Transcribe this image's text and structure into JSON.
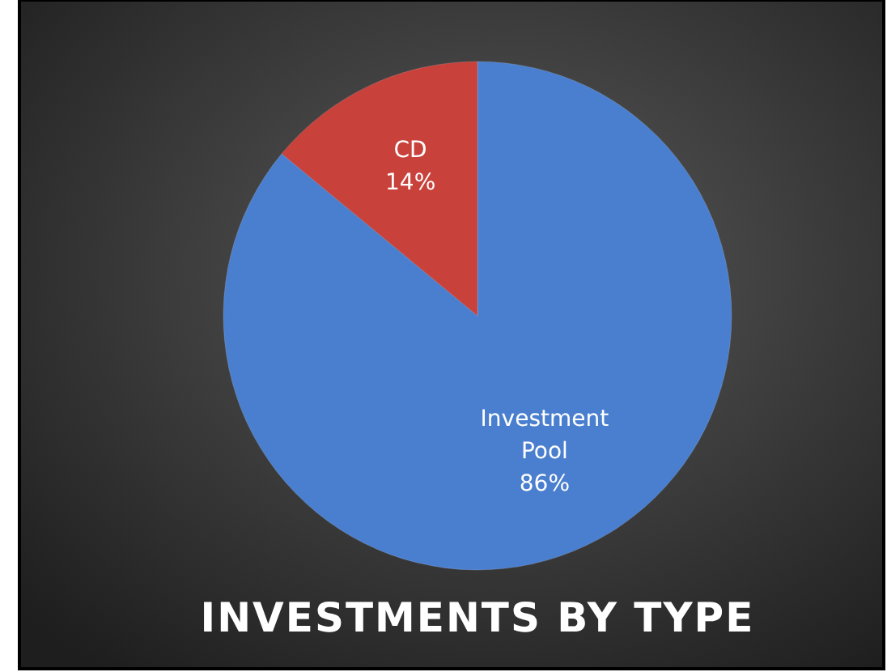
{
  "chart_data": {
    "type": "pie",
    "title": "INVESTMENTS BY TYPE",
    "categories": [
      "Investment Pool",
      "CD"
    ],
    "values": [
      86,
      14
    ],
    "value_labels": [
      "86%",
      "14%"
    ],
    "colors": [
      "#4a7fcf",
      "#c9413b"
    ]
  }
}
